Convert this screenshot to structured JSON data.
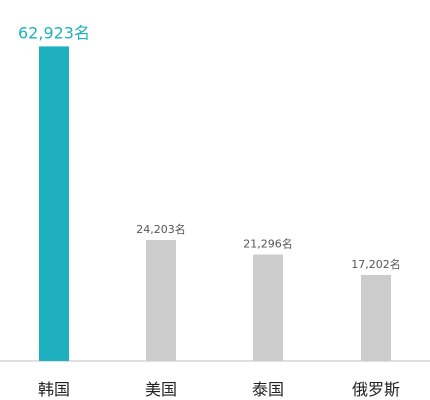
{
  "chart_data": {
    "type": "bar",
    "categories": [
      "韩国",
      "美国",
      "泰国",
      "俄罗斯"
    ],
    "values": [
      62923,
      24203,
      21296,
      17202
    ],
    "value_labels": [
      "62,923名",
      "24,203名",
      "21,296名",
      "17,202名"
    ],
    "ylim": [
      0,
      63000
    ],
    "grid": false,
    "highlight_index": 0,
    "colors": {
      "highlight_bar": "#1fb0c0",
      "normal_bar": "#cccccc",
      "highlight_label": "#1fb0c0",
      "normal_label": "#555555",
      "category_label": "#222222",
      "baseline": "#c0c0c0"
    }
  }
}
